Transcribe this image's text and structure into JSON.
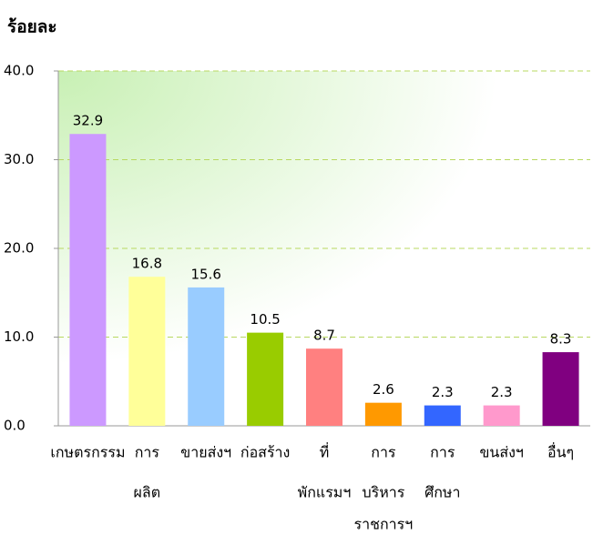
{
  "chart_data": {
    "type": "bar",
    "y_axis_label": "ร้อยละ",
    "categories": [
      [
        "เกษตรกรรม"
      ],
      [
        "การ",
        "ผลิต"
      ],
      [
        "ขายส่งฯ"
      ],
      [
        "ก่อสร้าง"
      ],
      [
        "ที่",
        "พักแรมฯ"
      ],
      [
        "การ",
        "บริหาร",
        "ราชการฯ"
      ],
      [
        "การ",
        "ศึกษา"
      ],
      [
        "ขนส่งฯ"
      ],
      [
        "อื่นๆ"
      ]
    ],
    "values": [
      32.9,
      16.8,
      15.6,
      10.5,
      8.7,
      2.6,
      2.3,
      2.3,
      8.3
    ],
    "colors": [
      "#cc99ff",
      "#ffff99",
      "#99ccff",
      "#99cc00",
      "#ff8080",
      "#ff9900",
      "#3366ff",
      "#ff99cc",
      "#800080"
    ],
    "ylim": [
      0,
      40
    ],
    "yticks": [
      {
        "value": 0,
        "label": "0.0"
      },
      {
        "value": 10,
        "label": "10.0"
      },
      {
        "value": 20,
        "label": "20.0"
      },
      {
        "value": 30,
        "label": "30.0"
      },
      {
        "value": 40,
        "label": "40.0"
      }
    ],
    "grid": true
  }
}
